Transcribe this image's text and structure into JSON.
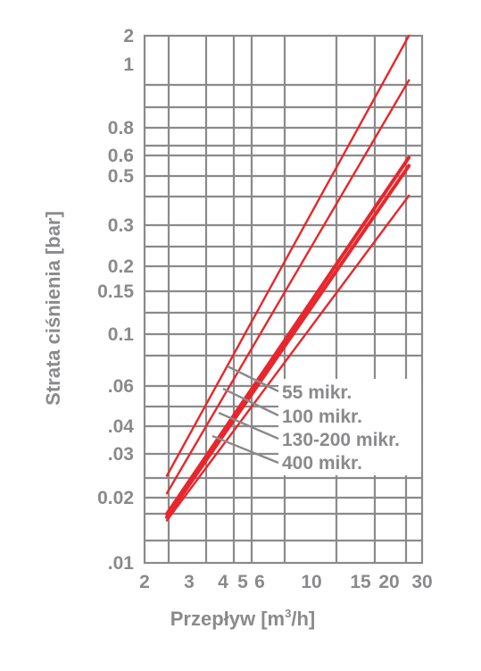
{
  "chart_data": {
    "type": "line",
    "title": "",
    "xlabel": "Przepływ [m",
    "xlabel_sup": "3",
    "xlabel_suffix": "/h]",
    "ylabel": "Strata ciśnienia [bar]",
    "x_scale": "non-uniform",
    "y_scale": "non-uniform",
    "grid": true,
    "legend_placement": "center-right",
    "colors": {
      "series": "#e8262b",
      "grid": "#8a8a8c",
      "text": "#8a8a8c",
      "legend_bg": "#ffffff"
    },
    "x_ticks": [
      {
        "label": "2",
        "value": 2
      },
      {
        "label": "3",
        "value": 3
      },
      {
        "label": "4",
        "value": 4
      },
      {
        "label": "5",
        "value": 5
      },
      {
        "label": "6",
        "value": 6
      },
      {
        "label": "10",
        "value": 10
      },
      {
        "label": "15",
        "value": 15
      },
      {
        "label": "20",
        "value": 20
      },
      {
        "label": "30",
        "value": 30
      }
    ],
    "y_ticks": [
      {
        "label": ".01",
        "value": 0.01
      },
      {
        "label": "0.02",
        "value": 0.02
      },
      {
        "label": ".03",
        "value": 0.03
      },
      {
        "label": ".04",
        "value": 0.04
      },
      {
        "label": ".06",
        "value": 0.06
      },
      {
        "label": "0.1",
        "value": 0.1
      },
      {
        "label": "0.15",
        "value": 0.15
      },
      {
        "label": "0.2",
        "value": 0.2
      },
      {
        "label": "0.3",
        "value": 0.3
      },
      {
        "label": "0.5",
        "value": 0.5
      },
      {
        "label": "0.6",
        "value": 0.6
      },
      {
        "label": "0.8",
        "value": 0.8
      },
      {
        "label": "1",
        "value": 1
      },
      {
        "label": "2",
        "value": 2
      }
    ],
    "series": [
      {
        "name": "55 mikr.",
        "points": [
          [
            2.5,
            0.025
          ],
          [
            26,
            2
          ]
        ]
      },
      {
        "name": "100 mikr.",
        "points": [
          [
            2.5,
            0.021
          ],
          [
            26,
            0.95
          ]
        ]
      },
      {
        "name": "130-200 mikr.",
        "points": [
          [
            2.5,
            0.017
          ],
          [
            26,
            0.55
          ]
        ]
      },
      {
        "name": "130-200 mikr.",
        "points": [
          [
            2.5,
            0.0175
          ],
          [
            26,
            0.59
          ]
        ]
      },
      {
        "name": "400 mikr.",
        "points": [
          [
            2.5,
            0.0165
          ],
          [
            26,
            0.42
          ]
        ]
      }
    ]
  }
}
